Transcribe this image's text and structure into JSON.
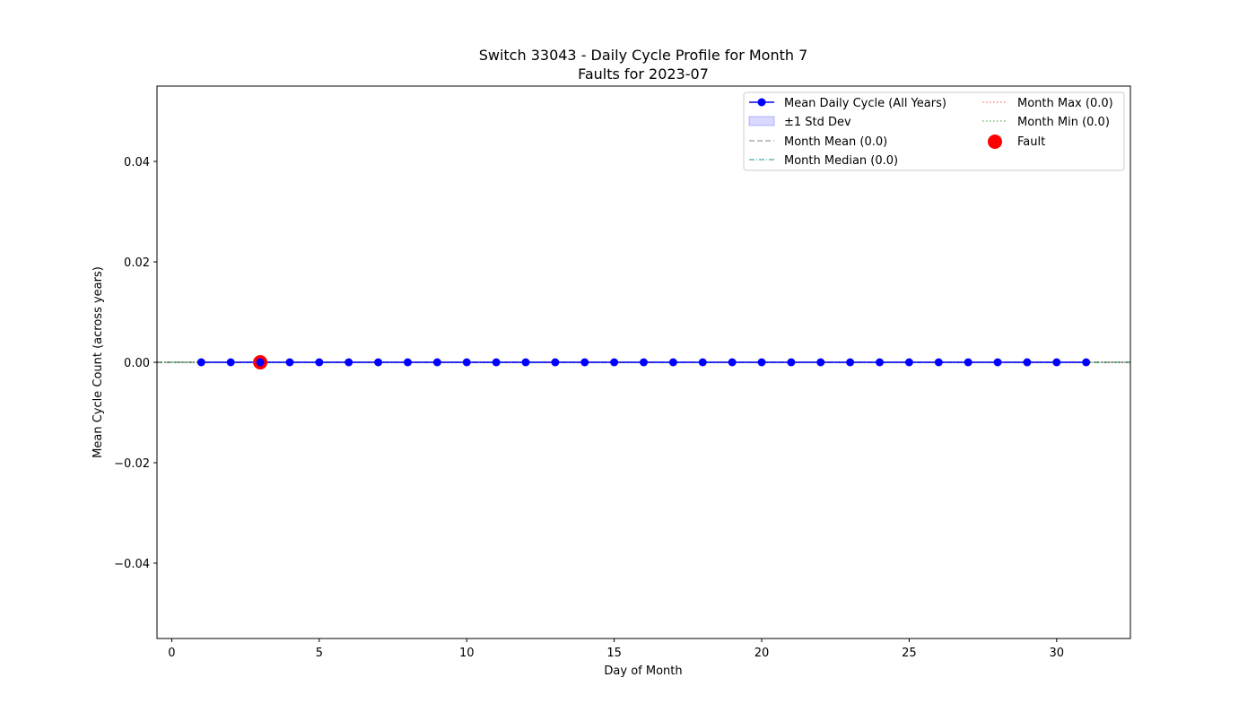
{
  "chart_data": {
    "type": "line",
    "title": "Switch 33043 - Daily Cycle Profile for Month 7",
    "subtitle": "Faults for 2023-07",
    "xlabel": "Day of Month",
    "ylabel": "Mean Cycle Count (across years)",
    "xlim": [
      -0.5,
      32.5
    ],
    "ylim": [
      -0.055,
      0.055
    ],
    "xticks": [
      0,
      5,
      10,
      15,
      20,
      25,
      30
    ],
    "xtick_labels": [
      "0",
      "5",
      "10",
      "15",
      "20",
      "25",
      "30"
    ],
    "yticks": [
      0.04,
      0.02,
      0.0,
      -0.02,
      -0.04
    ],
    "ytick_labels": [
      "0.04",
      "0.02",
      "0.00",
      "−0.02",
      "−0.04"
    ],
    "grid": false,
    "legend_position": "upper-right",
    "series": [
      {
        "name": "Mean Daily Cycle (All Years)",
        "color": "#0000ff",
        "x": [
          1,
          2,
          3,
          4,
          5,
          6,
          7,
          8,
          9,
          10,
          11,
          12,
          13,
          14,
          15,
          16,
          17,
          18,
          19,
          20,
          21,
          22,
          23,
          24,
          25,
          26,
          27,
          28,
          29,
          30,
          31
        ],
        "values": [
          0,
          0,
          0,
          0,
          0,
          0,
          0,
          0,
          0,
          0,
          0,
          0,
          0,
          0,
          0,
          0,
          0,
          0,
          0,
          0,
          0,
          0,
          0,
          0,
          0,
          0,
          0,
          0,
          0,
          0,
          0
        ]
      },
      {
        "name": "±1 Std Dev",
        "color": "#0000ff",
        "lower": 0.0,
        "upper": 0.0
      },
      {
        "name": "Month Mean (0.0)",
        "color": "#808080",
        "value": 0.0,
        "style": "dashed"
      },
      {
        "name": "Month Median (0.0)",
        "color": "#008b8b",
        "value": 0.0,
        "style": "dashdot"
      },
      {
        "name": "Month Max (0.0)",
        "color": "#ff0000",
        "value": 0.0,
        "style": "dotted"
      },
      {
        "name": "Month Min (0.0)",
        "color": "#008000",
        "value": 0.0,
        "style": "dotted"
      },
      {
        "name": "Fault",
        "color": "#ff0000",
        "x": [
          3
        ],
        "values": [
          0.0
        ]
      }
    ]
  }
}
